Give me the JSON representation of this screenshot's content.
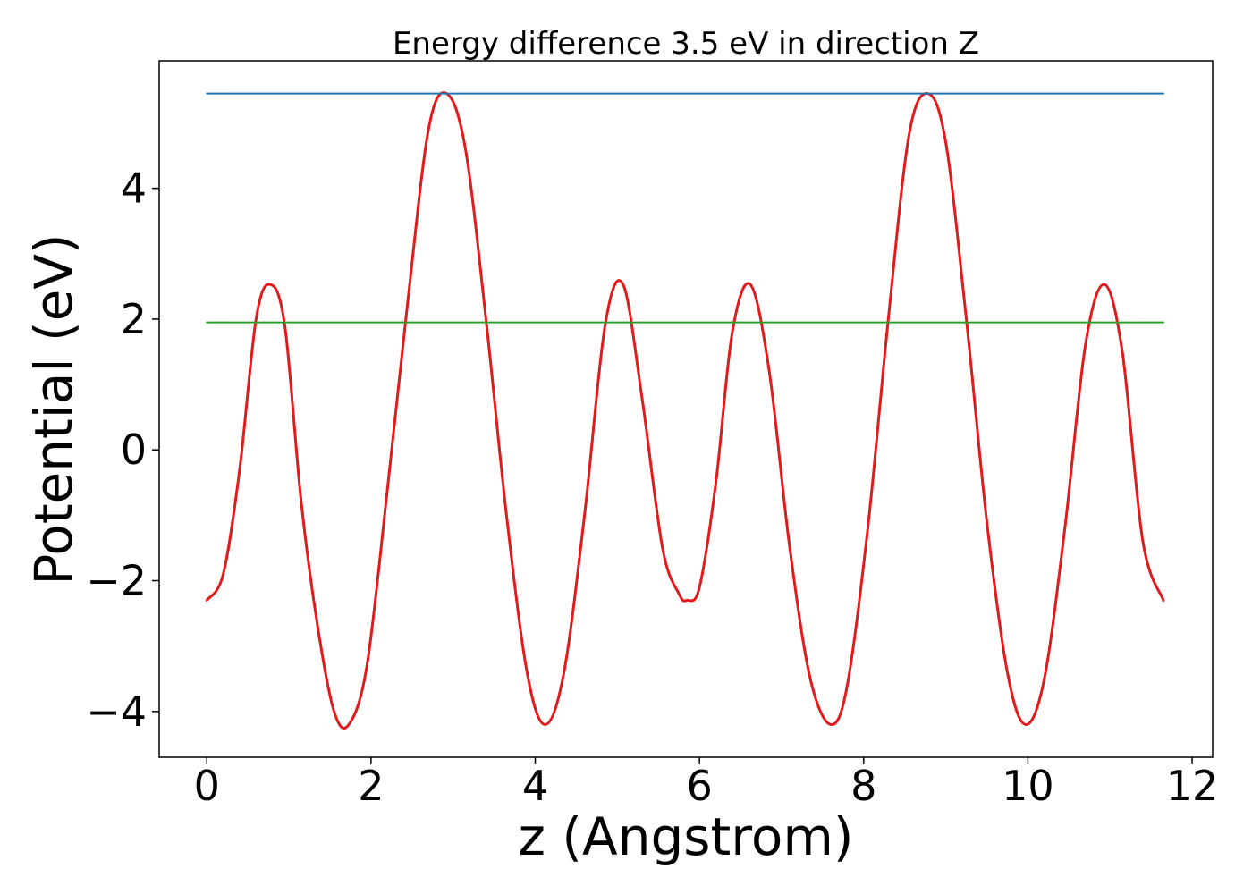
{
  "chart_data": {
    "type": "line",
    "title": "Energy difference 3.5 eV in direction Z",
    "xlabel": "z (Angstrom)",
    "ylabel": "Potential (eV)",
    "xlim": [
      -0.58,
      12.25
    ],
    "ylim": [
      -4.7,
      5.95
    ],
    "xticks": [
      0,
      2,
      4,
      6,
      8,
      10,
      12
    ],
    "yticks": [
      -4,
      -2,
      0,
      2,
      4
    ],
    "xtick_labels": [
      "0",
      "2",
      "4",
      "6",
      "8",
      "10",
      "12"
    ],
    "ytick_labels": [
      "−4",
      "−2",
      "0",
      "2",
      "4"
    ],
    "grid": false,
    "series": [
      {
        "kind": "curve",
        "color": "#e31a1c",
        "x": [
          0.0,
          0.2,
          0.4,
          0.6,
          0.77,
          0.95,
          1.15,
          1.35,
          1.55,
          1.73,
          1.95,
          2.2,
          2.45,
          2.7,
          2.92,
          3.15,
          3.4,
          3.65,
          3.9,
          4.12,
          4.35,
          4.6,
          4.85,
          5.07,
          5.3,
          5.55,
          5.75,
          5.85,
          6.0,
          6.2,
          6.4,
          6.62,
          6.85,
          7.1,
          7.35,
          7.6,
          7.8,
          8.05,
          8.3,
          8.55,
          8.78,
          9.0,
          9.25,
          9.5,
          9.75,
          9.97,
          10.2,
          10.45,
          10.7,
          10.93,
          11.15,
          11.4,
          11.65
        ],
        "y": [
          -2.3,
          -1.9,
          -0.3,
          2.0,
          2.53,
          1.9,
          -0.8,
          -2.7,
          -4.0,
          -4.2,
          -3.3,
          -0.6,
          2.3,
          4.9,
          5.45,
          4.6,
          2.0,
          -1.0,
          -3.4,
          -4.2,
          -3.4,
          -1.0,
          1.9,
          2.53,
          0.8,
          -1.5,
          -2.2,
          -2.3,
          -2.1,
          -0.5,
          1.8,
          2.53,
          1.2,
          -1.5,
          -3.5,
          -4.2,
          -3.6,
          -1.2,
          2.0,
          4.8,
          5.45,
          4.7,
          2.0,
          -1.1,
          -3.4,
          -4.2,
          -3.5,
          -1.2,
          1.6,
          2.53,
          1.5,
          -1.4,
          -2.3
        ]
      },
      {
        "kind": "hline",
        "color": "#1f77b4",
        "x": [
          0.0,
          11.65
        ],
        "y": [
          5.45,
          5.45
        ]
      },
      {
        "kind": "hline",
        "color": "#2ca02c",
        "x": [
          0.0,
          11.65
        ],
        "y": [
          1.95,
          1.95
        ]
      }
    ]
  }
}
